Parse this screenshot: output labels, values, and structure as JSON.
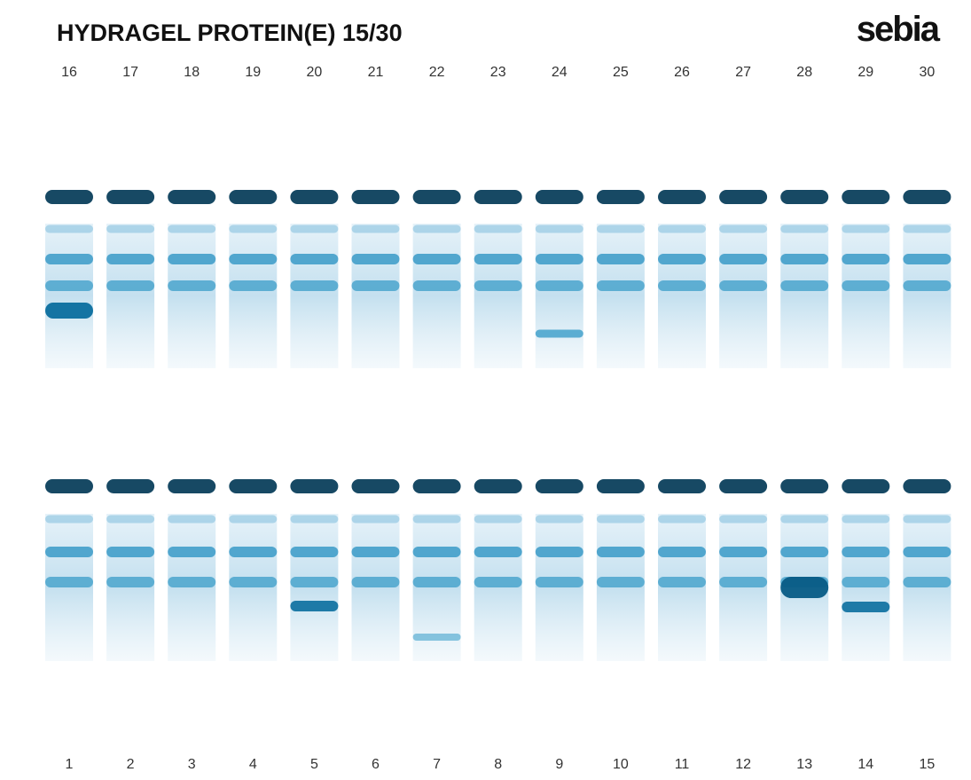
{
  "header": {
    "title": "HYDRAGEL PROTEIN(E) 15/30",
    "brand": "sebia"
  },
  "top_lanes": [
    "16",
    "17",
    "18",
    "19",
    "20",
    "21",
    "22",
    "23",
    "24",
    "25",
    "26",
    "27",
    "28",
    "29",
    "30"
  ],
  "bottom_lanes": [
    "1",
    "2",
    "3",
    "4",
    "5",
    "6",
    "7",
    "8",
    "9",
    "10",
    "11",
    "12",
    "13",
    "14",
    "15"
  ]
}
